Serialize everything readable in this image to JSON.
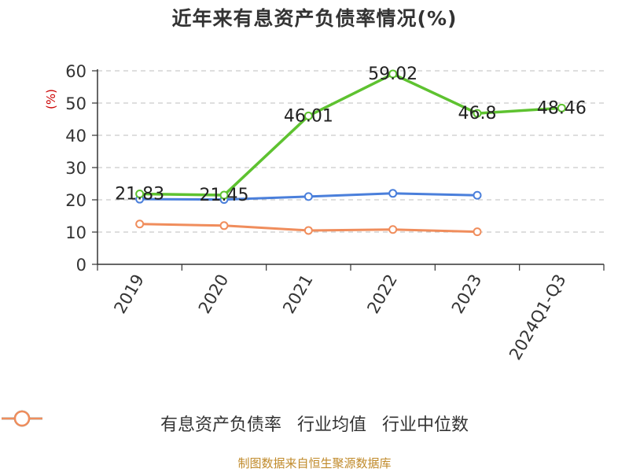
{
  "chart_data": {
    "type": "line",
    "title": "近年来有息资产负债率情况(%)",
    "ylabel": "(%)",
    "categories": [
      "2019",
      "2020",
      "2021",
      "2022",
      "2023",
      "2024Q1-Q3"
    ],
    "ylim": [
      0,
      60
    ],
    "yticks": [
      0,
      10,
      20,
      30,
      40,
      50,
      60
    ],
    "grid": true,
    "legend_position": "bottom",
    "series": [
      {
        "name": "有息资产负债率",
        "color": "#5ec230",
        "values": [
          21.83,
          21.45,
          46.01,
          59.02,
          46.8,
          48.46
        ],
        "labels": [
          "21.83",
          "21.45",
          "46.01",
          "59.02",
          "46.8",
          "48.46"
        ]
      },
      {
        "name": "行业均值",
        "color": "#4a7fdb",
        "values": [
          20.2,
          20.1,
          21.0,
          22.0,
          21.4,
          null
        ]
      },
      {
        "name": "行业中位数",
        "color": "#f08d5c",
        "values": [
          12.5,
          12.0,
          10.5,
          10.8,
          10.1,
          null
        ]
      }
    ]
  },
  "legend": {
    "item1": "有息资产负债率",
    "item2": "行业均值",
    "item3": "行业中位数"
  },
  "source": "制图数据来自恒生聚源数据库"
}
